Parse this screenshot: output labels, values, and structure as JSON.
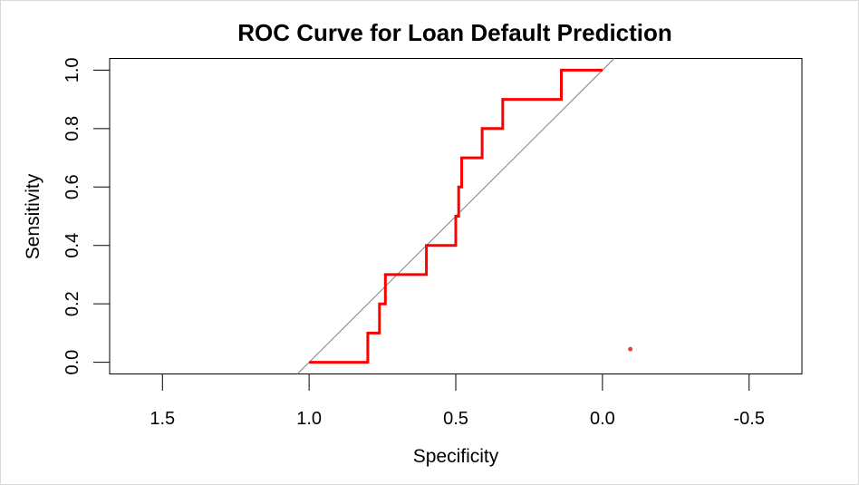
{
  "chart_data": {
    "type": "line",
    "title": "ROC Curve for Loan Default Prediction",
    "xlabel": "Specificity",
    "ylabel": "Sensitivity",
    "xlim": [
      1.68,
      -0.68
    ],
    "ylim": [
      -0.04,
      1.04
    ],
    "x_reversed": true,
    "x_ticks": [
      1.5,
      1.0,
      0.5,
      0.0,
      -0.5
    ],
    "x_tick_labels": [
      "1.5",
      "1.0",
      "0.5",
      "0.0",
      "-0.5"
    ],
    "y_ticks": [
      0.0,
      0.2,
      0.4,
      0.6,
      0.8,
      1.0
    ],
    "y_tick_labels": [
      "0.0",
      "0.2",
      "0.4",
      "0.6",
      "0.8",
      "1.0"
    ],
    "grid": false,
    "series": [
      {
        "color": "#ff0000",
        "x": [
          1.0,
          0.8,
          0.8,
          0.76,
          0.76,
          0.74,
          0.74,
          0.6,
          0.6,
          0.5,
          0.5,
          0.49,
          0.49,
          0.48,
          0.48,
          0.41,
          0.41,
          0.34,
          0.34,
          0.14,
          0.14,
          0.0
        ],
        "y": [
          0.0,
          0.0,
          0.1,
          0.1,
          0.2,
          0.2,
          0.3,
          0.3,
          0.4,
          0.4,
          0.5,
          0.5,
          0.6,
          0.6,
          0.7,
          0.7,
          0.8,
          0.8,
          0.9,
          0.9,
          1.0,
          1.0
        ]
      }
    ],
    "reference_line": {
      "x": [
        1.04,
        -0.04
      ],
      "y": [
        -0.04,
        1.04
      ],
      "color": "#808080"
    },
    "points": [
      {
        "x": -0.095,
        "y": 0.045,
        "color": "#e8443a"
      }
    ]
  }
}
